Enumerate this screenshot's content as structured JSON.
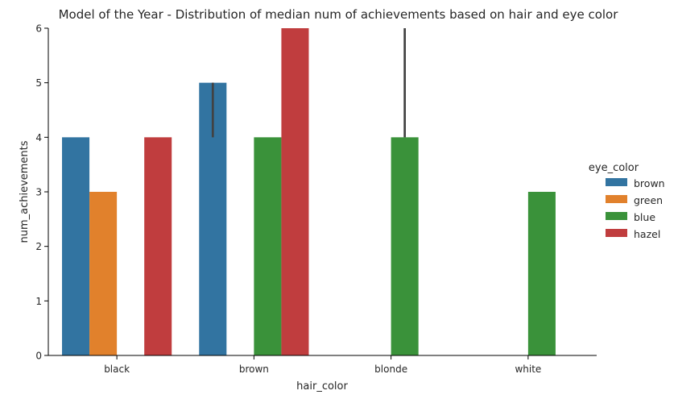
{
  "chart_data": {
    "type": "bar",
    "title": "Model of the Year - Distribution of median num of achievements based on hair and eye color",
    "xlabel": "hair_color",
    "ylabel": "num_achievements",
    "ylim": [
      0,
      6
    ],
    "yticks": [
      0,
      1,
      2,
      3,
      4,
      5,
      6
    ],
    "categories": [
      "black",
      "brown",
      "blonde",
      "white"
    ],
    "legend": {
      "title": "eye_color",
      "placement": "right"
    },
    "grid": false,
    "series": [
      {
        "name": "brown",
        "color": "#3274a1",
        "values": [
          4,
          5,
          null,
          null
        ],
        "ci": [
          null,
          [
            4,
            5
          ],
          null,
          null
        ]
      },
      {
        "name": "green",
        "color": "#e1812c",
        "values": [
          3,
          null,
          null,
          null
        ],
        "ci": [
          null,
          null,
          null,
          null
        ]
      },
      {
        "name": "blue",
        "color": "#3a923a",
        "values": [
          null,
          4,
          4,
          3
        ],
        "ci": [
          null,
          null,
          [
            4,
            6
          ],
          null
        ]
      },
      {
        "name": "hazel",
        "color": "#c03d3e",
        "values": [
          4,
          6,
          null,
          null
        ],
        "ci": [
          null,
          null,
          null,
          null
        ]
      }
    ]
  }
}
